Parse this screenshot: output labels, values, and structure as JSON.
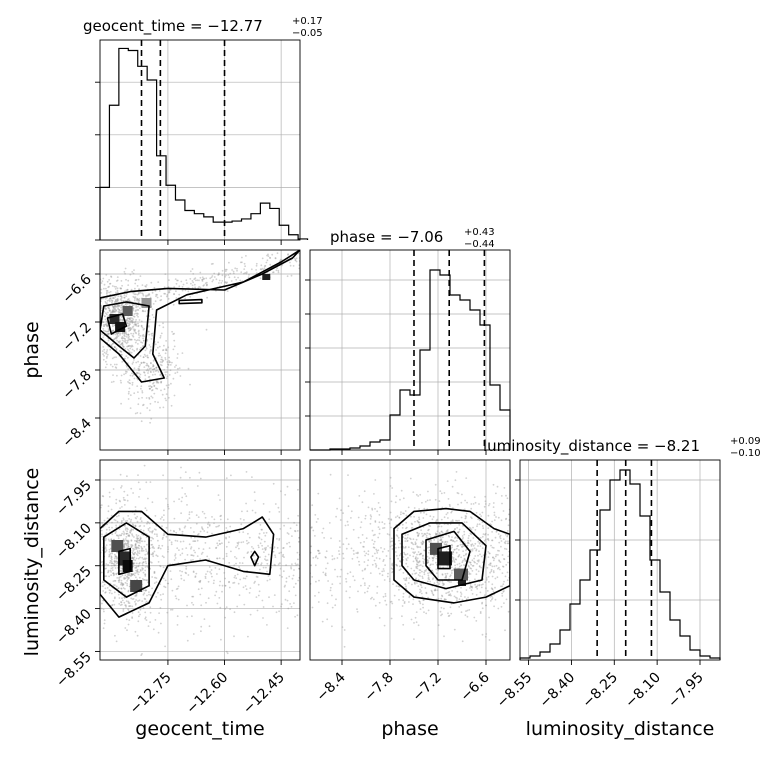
{
  "figure_type": "corner plot",
  "colors": {
    "background": "#ffffff",
    "hist_line": "#000000",
    "quantile_line": "#000000",
    "grid": "#b0b0b0",
    "scatter": "#9a9a9a",
    "contour": "#000000"
  },
  "titles": {
    "geocent_time": {
      "prefix": "geocent_time = −12.77",
      "plus": "+0.17",
      "minus": "−0.05"
    },
    "phase": {
      "prefix": "phase = −7.06",
      "plus": "+0.43",
      "minus": "−0.44"
    },
    "luminosity_distance": {
      "prefix": "luminosity_distance = −8.21",
      "plus": "+0.09",
      "minus": "−0.10"
    }
  },
  "axis_labels": {
    "geocent_time": "geocent_time",
    "phase": "phase",
    "luminosity_distance": "luminosity_distance"
  },
  "chart_data": [
    {
      "type": "bar",
      "parameter": "geocent_time",
      "panel": "histogram",
      "xlim": [
        -12.93,
        -12.4
      ],
      "quantiles": [
        -12.82,
        -12.77,
        -12.6
      ],
      "bins_left_edges": [
        -12.93,
        -12.905,
        -12.88,
        -12.855,
        -12.83,
        -12.805,
        -12.78,
        -12.755,
        -12.73,
        -12.705,
        -12.68,
        -12.655,
        -12.63,
        -12.605,
        -12.58,
        -12.555,
        -12.53,
        -12.505,
        -12.48,
        -12.455,
        -12.43,
        -12.405
      ],
      "values": [
        50,
        128,
        182,
        180,
        165,
        152,
        80,
        52,
        38,
        28,
        25,
        22,
        17,
        17,
        18,
        20,
        25,
        35,
        30,
        14,
        5,
        1
      ],
      "ylim": [
        0,
        190
      ]
    },
    {
      "type": "bar",
      "parameter": "phase",
      "panel": "histogram",
      "xlim": [
        -8.8,
        -6.3
      ],
      "quantiles": [
        -7.5,
        -7.06,
        -6.62
      ],
      "bins_left_edges": [
        -8.8,
        -8.675,
        -8.55,
        -8.425,
        -8.3,
        -8.175,
        -8.05,
        -7.925,
        -7.8,
        -7.675,
        -7.55,
        -7.425,
        -7.3,
        -7.175,
        -7.05,
        -6.925,
        -6.8,
        -6.675,
        -6.55,
        -6.425
      ],
      "values": [
        0,
        0,
        1,
        1,
        2,
        4,
        8,
        10,
        35,
        60,
        55,
        100,
        180,
        175,
        155,
        150,
        140,
        125,
        65,
        40
      ],
      "ylim": [
        0,
        200
      ]
    },
    {
      "type": "bar",
      "parameter": "luminosity_distance",
      "panel": "histogram",
      "xlim": [
        -8.58,
        -7.88
      ],
      "quantiles": [
        -8.31,
        -8.21,
        -8.12
      ],
      "bins_left_edges": [
        -8.58,
        -8.545,
        -8.51,
        -8.475,
        -8.44,
        -8.405,
        -8.37,
        -8.335,
        -8.3,
        -8.265,
        -8.23,
        -8.195,
        -8.16,
        -8.125,
        -8.09,
        -8.055,
        -8.02,
        -7.985,
        -7.95,
        -7.915
      ],
      "values": [
        1,
        2,
        4,
        8,
        15,
        28,
        40,
        55,
        75,
        90,
        95,
        88,
        72,
        50,
        34,
        20,
        12,
        5,
        2,
        1
      ],
      "ylim": [
        0,
        100
      ]
    },
    {
      "type": "scatter",
      "panel": "phase vs geocent_time",
      "x_param": "geocent_time",
      "y_param": "phase",
      "xlim": [
        -12.93,
        -12.4
      ],
      "ylim": [
        -8.8,
        -6.3
      ],
      "xticks": [
        -12.75,
        -12.6,
        -12.45
      ],
      "yticks": [
        -6.6,
        -7.2,
        -7.8,
        -8.4
      ],
      "contour_levels": 4,
      "density_peak": [
        -12.89,
        -7.25
      ]
    },
    {
      "type": "scatter",
      "panel": "luminosity_distance vs geocent_time",
      "x_param": "geocent_time",
      "y_param": "luminosity_distance",
      "xlim": [
        -12.93,
        -12.4
      ],
      "ylim": [
        -8.58,
        -7.88
      ],
      "xticks": [
        -12.75,
        -12.6,
        -12.45
      ],
      "yticks": [
        -7.95,
        -8.1,
        -8.25,
        -8.4,
        -8.55
      ],
      "contour_levels": 4,
      "density_peak": [
        -12.86,
        -8.23
      ]
    },
    {
      "type": "scatter",
      "panel": "luminosity_distance vs phase",
      "x_param": "phase",
      "y_param": "luminosity_distance",
      "xlim": [
        -8.8,
        -6.3
      ],
      "ylim": [
        -8.58,
        -7.88
      ],
      "xticks": [
        -8.4,
        -7.8,
        -7.2,
        -6.6
      ],
      "yticks": [],
      "contour_levels": 4,
      "density_peak": [
        -7.1,
        -8.22
      ]
    }
  ],
  "tick_labels": {
    "geocent_time": [
      "−12.75",
      "−12.60",
      "−12.45"
    ],
    "phase_y": [
      "−6.6",
      "−7.2",
      "−7.8",
      "−8.4"
    ],
    "phase_x": [
      "−8.4",
      "−7.8",
      "−7.2",
      "−6.6"
    ],
    "luminosity_distance_y": [
      "−7.95",
      "−8.10",
      "−8.25",
      "−8.40",
      "−8.55"
    ],
    "luminosity_distance_x": [
      "−8.55",
      "−8.40",
      "−8.25",
      "−8.10",
      "−7.95"
    ]
  }
}
